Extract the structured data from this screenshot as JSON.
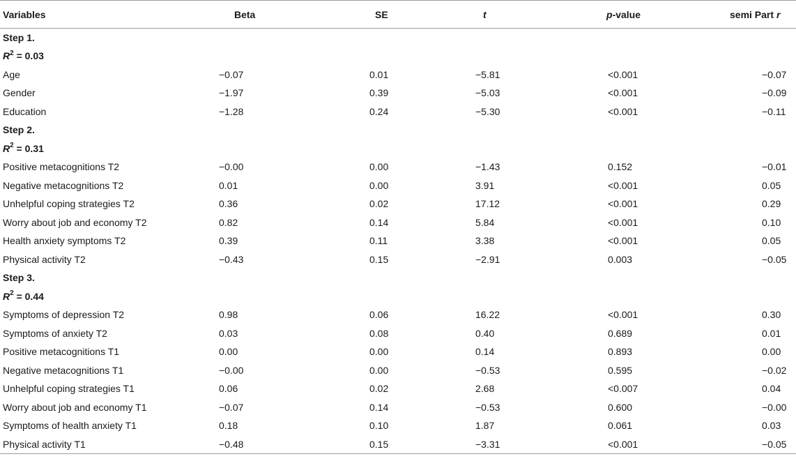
{
  "table": {
    "headers": {
      "variables": "Variables",
      "beta": "Beta",
      "se": "SE",
      "t": "t",
      "p_prefix": "p",
      "p_suffix": "-value",
      "semi_prefix": "semi Part ",
      "semi_suffix": "r"
    },
    "sections": [
      {
        "step": "Step 1.",
        "r2_letter": "R",
        "r2_exp": "2",
        "r2_value": " = 0.03",
        "rows": [
          {
            "variable": "Age",
            "beta": "−0.07",
            "se": "0.01",
            "t": "−5.81",
            "p": "<0.001",
            "semi": "−0.07"
          },
          {
            "variable": "Gender",
            "beta": "−1.97",
            "se": "0.39",
            "t": "−5.03",
            "p": "<0.001",
            "semi": "−0.09"
          },
          {
            "variable": "Education",
            "beta": "−1.28",
            "se": "0.24",
            "t": "−5.30",
            "p": "<0.001",
            "semi": "−0.11"
          }
        ]
      },
      {
        "step": "Step 2.",
        "r2_letter": "R",
        "r2_exp": "2",
        "r2_value": " = 0.31",
        "rows": [
          {
            "variable": "Positive metacognitions T2",
            "beta": "−0.00",
            "se": "0.00",
            "t": "−1.43",
            "p": "0.152",
            "semi": "−0.01"
          },
          {
            "variable": "Negative metacognitions T2",
            "beta": "0.01",
            "se": "0.00",
            "t": "3.91",
            "p": "<0.001",
            "semi": "0.05"
          },
          {
            "variable": "Unhelpful coping strategies T2",
            "beta": "0.36",
            "se": "0.02",
            "t": "17.12",
            "p": "<0.001",
            "semi": "0.29"
          },
          {
            "variable": "Worry about job and economy T2",
            "beta": "0.82",
            "se": "0.14",
            "t": "5.84",
            "p": "<0.001",
            "semi": "0.10"
          },
          {
            "variable": "Health anxiety symptoms T2",
            "beta": "0.39",
            "se": "0.11",
            "t": "3.38",
            "p": "<0.001",
            "semi": "0.05"
          },
          {
            "variable": "Physical activity T2",
            "beta": "−0.43",
            "se": "0.15",
            "t": "−2.91",
            "p": "0.003",
            "semi": "−0.05"
          }
        ]
      },
      {
        "step": "Step 3.",
        "r2_letter": "R",
        "r2_exp": "2",
        "r2_value": " = 0.44",
        "rows": [
          {
            "variable": "Symptoms of depression T2",
            "beta": "0.98",
            "se": "0.06",
            "t": "16.22",
            "p": "<0.001",
            "semi": "0.30"
          },
          {
            "variable": "Symptoms of anxiety T2",
            "beta": "0.03",
            "se": "0.08",
            "t": "0.40",
            "p": "0.689",
            "semi": "0.01"
          },
          {
            "variable": "Positive metacognitions T1",
            "beta": "0.00",
            "se": "0.00",
            "t": "0.14",
            "p": "0.893",
            "semi": "0.00"
          },
          {
            "variable": "Negative metacognitions T1",
            "beta": "−0.00",
            "se": "0.00",
            "t": "−0.53",
            "p": "0.595",
            "semi": "−0.02"
          },
          {
            "variable": "Unhelpful coping strategies T1",
            "beta": "0.06",
            "se": "0.02",
            "t": "2.68",
            "p": "<0.007",
            "semi": "0.04"
          },
          {
            "variable": "Worry about job and economy T1",
            "beta": "−0.07",
            "se": "0.14",
            "t": "−0.53",
            "p": "0.600",
            "semi": "−0.00"
          },
          {
            "variable": "Symptoms of health anxiety T1",
            "beta": "0.18",
            "se": "0.10",
            "t": "1.87",
            "p": "0.061",
            "semi": "0.03"
          },
          {
            "variable": "Physical activity T1",
            "beta": "−0.48",
            "se": "0.15",
            "t": "−3.31",
            "p": "<0.001",
            "semi": "−0.05"
          }
        ]
      }
    ]
  }
}
